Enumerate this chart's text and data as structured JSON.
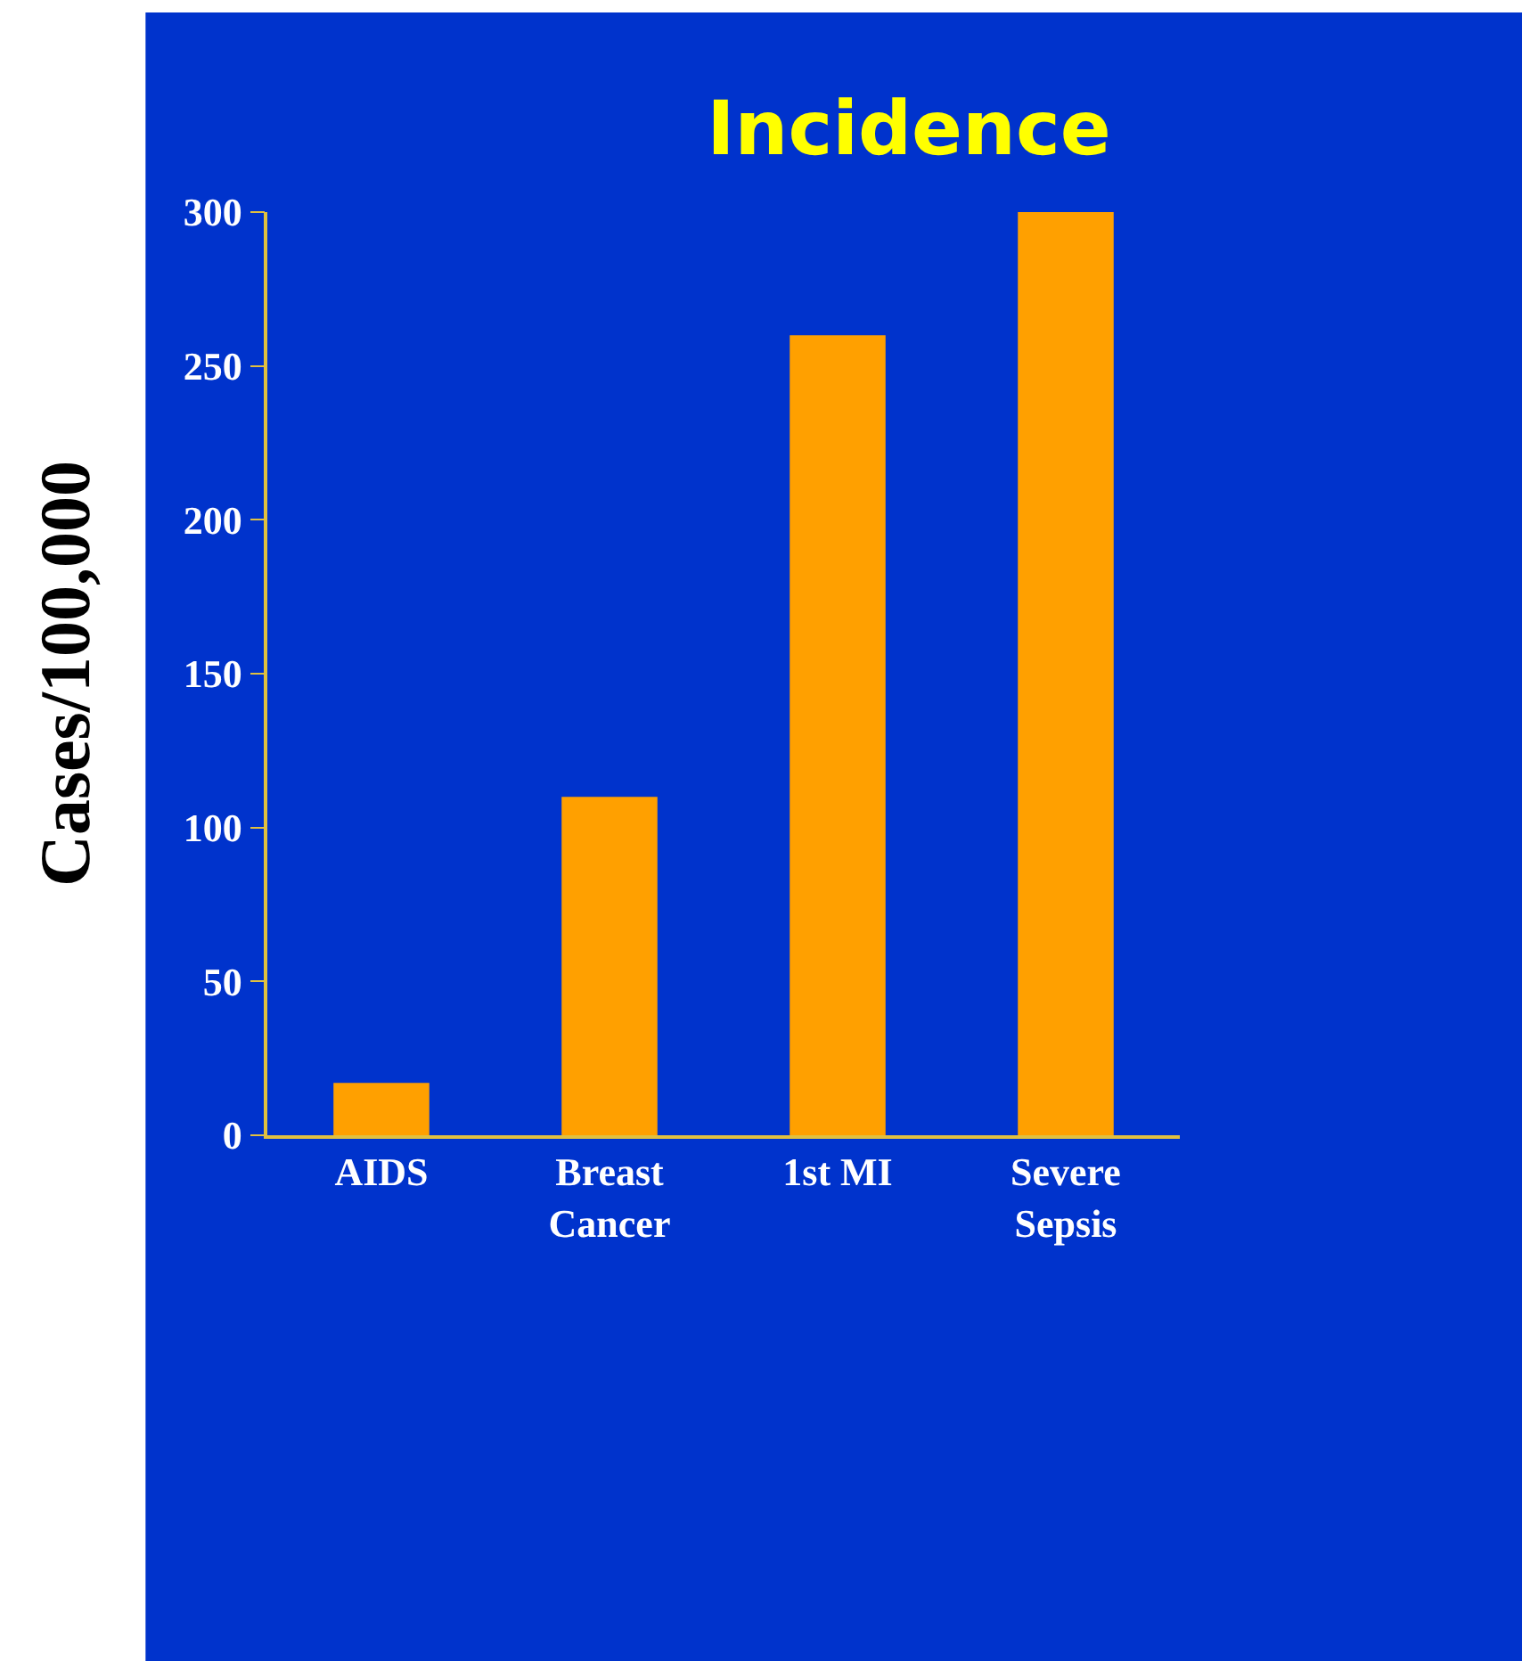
{
  "chart_data": {
    "type": "bar",
    "title": "Incidence",
    "ylabel": "Cases/100,000",
    "categories": [
      "AIDS",
      "Breast Cancer",
      "1st MI",
      "Severe Sepsis"
    ],
    "values": [
      17,
      110,
      260,
      300
    ],
    "color": "#ffa000",
    "ylim": [
      0,
      300
    ],
    "yticks": [
      0,
      50,
      100,
      150,
      200,
      250,
      300
    ],
    "grid": false
  }
}
